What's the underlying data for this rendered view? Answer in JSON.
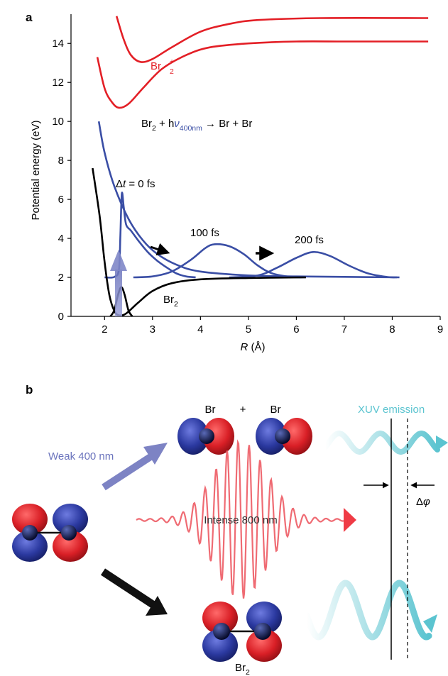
{
  "panel_a": {
    "label": "a",
    "chart_data": {
      "type": "line",
      "xlabel_var": "R",
      "xlabel_unit": " (Å)",
      "ylabel": "Potential energy (eV)",
      "xlim": [
        1.3,
        9.0
      ],
      "ylim": [
        0,
        15.5
      ],
      "x_ticks": [
        2,
        3,
        4,
        5,
        6,
        7,
        8,
        9
      ],
      "y_ticks": [
        0,
        2,
        4,
        6,
        8,
        10,
        12,
        14
      ],
      "grid": false,
      "reaction": {
        "main": "Br",
        "sub1": "2",
        "plus_h": " + h",
        "nu": "ν",
        "sub2": "400nm",
        "products": " → Br + Br"
      },
      "annotations": {
        "dt_delta": "Δ",
        "dt_t": "t",
        "dt_rest": " = 0 fs",
        "t100": "100 fs",
        "t200": "200 fs",
        "ion_label": "Br",
        "ion_sub": "2",
        "ion_sup": "+",
        "ground_label": "Br",
        "ground_sub": "2"
      },
      "series": [
        {
          "color": "#e31f26",
          "points": [
            [
              1.85,
              13.3
            ],
            [
              2.0,
              11.7
            ],
            [
              2.15,
              11.0
            ],
            [
              2.3,
              10.7
            ],
            [
              2.5,
              10.9
            ],
            [
              2.8,
              11.7
            ],
            [
              3.2,
              12.7
            ],
            [
              3.7,
              13.4
            ],
            [
              4.2,
              13.8
            ],
            [
              5.0,
              14.0
            ],
            [
              6.0,
              14.1
            ],
            [
              7.0,
              14.1
            ],
            [
              8.0,
              14.1
            ],
            [
              8.75,
              14.1
            ]
          ]
        },
        {
          "color": "#e31f26",
          "points": [
            [
              2.25,
              15.4
            ],
            [
              2.4,
              14.2
            ],
            [
              2.55,
              13.4
            ],
            [
              2.75,
              13.05
            ],
            [
              3.0,
              13.2
            ],
            [
              3.4,
              13.8
            ],
            [
              4.0,
              14.6
            ],
            [
              4.6,
              15.0
            ],
            [
              5.2,
              15.2
            ],
            [
              6.5,
              15.3
            ],
            [
              8.75,
              15.3
            ]
          ]
        },
        {
          "color": "#3a4ea5",
          "points": [
            [
              1.88,
              10.0
            ],
            [
              2.0,
              8.4
            ],
            [
              2.2,
              6.7
            ],
            [
              2.5,
              5.0
            ],
            [
              2.8,
              3.9
            ],
            [
              3.1,
              3.2
            ],
            [
              3.5,
              2.65
            ],
            [
              4.0,
              2.3
            ],
            [
              5.0,
              2.1
            ],
            [
              6.0,
              2.05
            ],
            [
              8.15,
              2.0
            ]
          ]
        },
        {
          "color": "#3a4ea5",
          "points": [
            [
              2.0,
              2.0
            ],
            [
              2.2,
              2.02
            ],
            [
              2.3,
              2.4
            ],
            [
              2.33,
              4.2
            ],
            [
              2.36,
              6.3
            ],
            [
              2.4,
              5.6
            ],
            [
              2.45,
              4.7
            ],
            [
              2.55,
              4.4
            ],
            [
              2.7,
              3.9
            ],
            [
              2.9,
              3.3
            ],
            [
              3.1,
              2.85
            ],
            [
              3.3,
              2.5
            ],
            [
              3.5,
              2.2
            ],
            [
              3.7,
              2.05
            ],
            [
              3.9,
              2.0
            ]
          ]
        },
        {
          "color": "#3a4ea5",
          "points": [
            [
              2.6,
              2.0
            ],
            [
              3.0,
              2.05
            ],
            [
              3.4,
              2.3
            ],
            [
              3.8,
              2.9
            ],
            [
              4.1,
              3.5
            ],
            [
              4.3,
              3.7
            ],
            [
              4.6,
              3.6
            ],
            [
              4.9,
              3.2
            ],
            [
              5.2,
              2.6
            ],
            [
              5.5,
              2.2
            ],
            [
              5.9,
              2.02
            ],
            [
              6.2,
              2.0
            ]
          ]
        },
        {
          "color": "#3a4ea5",
          "points": [
            [
              4.6,
              2.0
            ],
            [
              5.2,
              2.1
            ],
            [
              5.6,
              2.5
            ],
            [
              6.0,
              3.0
            ],
            [
              6.35,
              3.3
            ],
            [
              6.7,
              3.1
            ],
            [
              7.1,
              2.6
            ],
            [
              7.5,
              2.2
            ],
            [
              7.9,
              2.02
            ],
            [
              8.1,
              2.0
            ]
          ]
        },
        {
          "color": "#000000",
          "points": [
            [
              1.75,
              7.6
            ],
            [
              1.9,
              5.1
            ],
            [
              2.0,
              2.8
            ],
            [
              2.1,
              1.1
            ],
            [
              2.2,
              0.3
            ],
            [
              2.3,
              0.05
            ],
            [
              2.45,
              0.15
            ],
            [
              2.7,
              0.7
            ],
            [
              3.0,
              1.3
            ],
            [
              3.4,
              1.7
            ],
            [
              4.0,
              1.9
            ],
            [
              5.0,
              1.97
            ],
            [
              6.2,
              2.0
            ]
          ]
        },
        {
          "color": "#000000",
          "points": [
            [
              2.12,
              0.0
            ],
            [
              2.2,
              0.3
            ],
            [
              2.28,
              1.1
            ],
            [
              2.35,
              1.5
            ],
            [
              2.42,
              1.1
            ],
            [
              2.5,
              0.3
            ],
            [
              2.58,
              0.0
            ]
          ]
        }
      ]
    }
  },
  "panel_b": {
    "label": "b",
    "br_left": "Br",
    "plus": "+",
    "br_right": "Br",
    "weak_label": "Weak 400 nm",
    "intense_label": "Intense 800 nm",
    "xuv_label": "XUV emission",
    "dphi_delta": "Δ",
    "dphi_phi": "φ",
    "bottom_label": "Br",
    "bottom_sub": "2",
    "colors": {
      "orbital_red": "#d91f26",
      "orbital_blue": "#2b39a0",
      "pulse": "#ef6b73",
      "xuv": "#5bc4d0",
      "weak_arrow": "#7d83c4"
    }
  }
}
